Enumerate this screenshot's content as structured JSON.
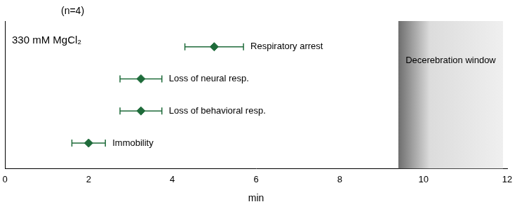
{
  "chart_data": {
    "type": "scatter",
    "title": "330 mM MgCl₂",
    "subtitle": "(n=4)",
    "x_label": "min",
    "categories": [
      "Immobility",
      "Loss of behavioral resp.",
      "Loss of neural resp.",
      "Respiratory arrest"
    ],
    "values": [
      2,
      3.25,
      3.25,
      5
    ],
    "errors": [
      0.4,
      0.5,
      0.5,
      0.7
    ],
    "color": "#1e6b3a",
    "marker": "diamond",
    "xlim": [
      0,
      12
    ],
    "xticks": [
      0,
      2,
      4,
      6,
      8,
      10,
      12
    ],
    "grid": false,
    "tick_labels": "x",
    "annotations": [
      {
        "label": "Decerebration window",
        "xstart": 9.4,
        "xend": 11.9
      }
    ]
  }
}
